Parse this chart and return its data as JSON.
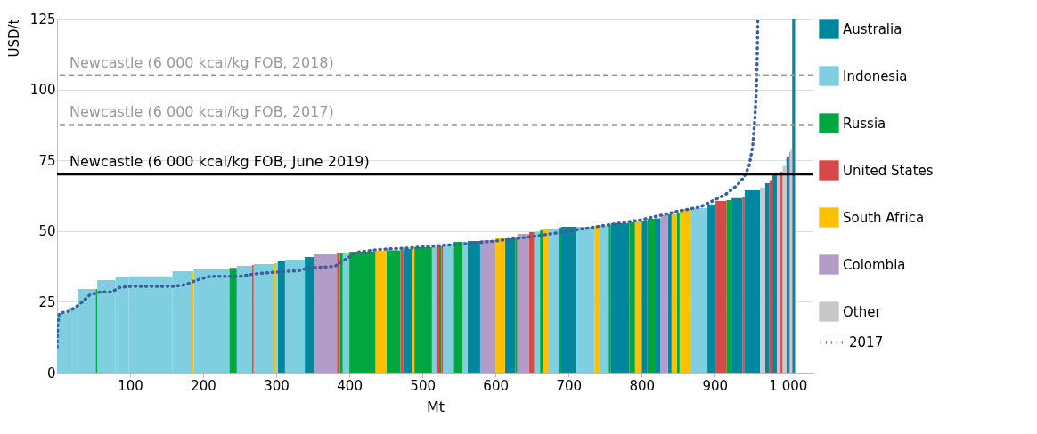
{
  "chart_data": {
    "type": "histogram",
    "xlabel": "Mt",
    "ylabel": "USD/t",
    "bins": [
      0,
      16,
      28,
      53,
      55,
      80,
      98,
      158,
      185,
      187,
      236,
      246,
      267,
      269,
      297,
      300,
      302,
      312,
      339,
      352,
      383,
      387,
      391,
      400,
      436,
      451,
      470,
      474,
      486,
      489,
      513,
      519,
      523,
      526,
      528,
      543,
      555,
      562,
      579,
      600,
      613,
      627,
      630,
      646,
      653,
      661,
      665,
      673,
      687,
      690,
      711,
      736,
      743,
      755,
      758,
      783,
      791,
      800,
      808,
      818,
      826,
      836,
      841,
      848,
      852,
      867,
      890,
      901,
      916,
      923,
      938,
      941,
      962,
      969,
      975,
      979,
      985,
      990,
      993,
      998,
      1002,
      1004,
      1006,
      1010
    ],
    "series": [
      {
        "name": "Australia",
        "color": "#00879e",
        "values": [
          null,
          null,
          null,
          null,
          null,
          null,
          null,
          null,
          null,
          null,
          null,
          null,
          null,
          null,
          null,
          null,
          39.6,
          null,
          40.8,
          null,
          null,
          null,
          null,
          null,
          null,
          null,
          null,
          43.7,
          null,
          null,
          null,
          null,
          null,
          null,
          null,
          null,
          null,
          46.5,
          null,
          null,
          47.4,
          null,
          null,
          null,
          null,
          null,
          null,
          null,
          null,
          51.5,
          null,
          null,
          null,
          null,
          52.8,
          null,
          null,
          53.7,
          null,
          54.5,
          null,
          55.9,
          null,
          null,
          null,
          null,
          59.4,
          null,
          null,
          61.6,
          null,
          64.4,
          null,
          66.9,
          null,
          70,
          null,
          null,
          null,
          76,
          null,
          null,
          125
        ]
      },
      {
        "name": "Indonesia",
        "color": "#7fcfe0",
        "values": [
          21,
          23,
          29.5,
          null,
          32.7,
          33.6,
          34,
          35.8,
          null,
          36.4,
          null,
          37.7,
          null,
          38.3,
          null,
          38.6,
          null,
          39.9,
          null,
          null,
          null,
          null,
          42.5,
          null,
          null,
          null,
          null,
          null,
          null,
          null,
          44.3,
          null,
          null,
          null,
          45.5,
          null,
          46.2,
          null,
          null,
          null,
          null,
          null,
          null,
          null,
          49.8,
          null,
          null,
          50.9,
          null,
          null,
          51.5,
          null,
          51.9,
          null,
          null,
          null,
          null,
          null,
          null,
          null,
          null,
          null,
          null,
          null,
          null,
          58.1,
          null,
          null,
          null,
          null,
          null,
          null,
          null,
          null,
          null,
          null,
          null,
          null,
          null,
          null,
          null,
          null,
          null
        ]
      },
      {
        "name": "Russia",
        "color": "#00a640",
        "values": [
          null,
          null,
          null,
          29.5,
          null,
          null,
          null,
          null,
          null,
          null,
          37,
          null,
          null,
          null,
          null,
          null,
          null,
          null,
          null,
          null,
          null,
          42.3,
          null,
          42.7,
          null,
          43.2,
          null,
          null,
          null,
          44.3,
          null,
          null,
          44.6,
          null,
          null,
          46.2,
          null,
          null,
          null,
          null,
          null,
          47.6,
          null,
          null,
          null,
          50.3,
          null,
          null,
          51.2,
          null,
          null,
          null,
          null,
          52.2,
          null,
          53.1,
          null,
          null,
          54.3,
          null,
          null,
          null,
          null,
          56.5,
          null,
          null,
          null,
          null,
          60.9,
          null,
          null,
          null,
          null,
          null,
          null,
          null,
          null,
          null,
          null,
          null,
          null,
          null,
          null
        ]
      },
      {
        "name": "United States",
        "color": "#d94848",
        "values": [
          null,
          null,
          null,
          null,
          null,
          null,
          null,
          null,
          null,
          null,
          null,
          null,
          38,
          null,
          null,
          null,
          null,
          null,
          null,
          null,
          42.3,
          null,
          null,
          null,
          null,
          null,
          43.4,
          null,
          null,
          null,
          null,
          44.5,
          null,
          44.8,
          null,
          null,
          null,
          null,
          null,
          null,
          null,
          null,
          null,
          49.6,
          null,
          null,
          null,
          null,
          null,
          null,
          null,
          null,
          null,
          null,
          null,
          null,
          null,
          null,
          null,
          null,
          null,
          null,
          null,
          null,
          null,
          null,
          null,
          60.6,
          null,
          null,
          62,
          null,
          null,
          null,
          68,
          null,
          null,
          71,
          null,
          null,
          null,
          null,
          null
        ]
      },
      {
        "name": "South Africa",
        "color": "#ffc000",
        "values": [
          null,
          null,
          null,
          null,
          null,
          null,
          null,
          null,
          35.8,
          null,
          null,
          null,
          null,
          null,
          38.6,
          null,
          null,
          null,
          null,
          null,
          null,
          null,
          null,
          null,
          43,
          null,
          null,
          null,
          43.8,
          null,
          null,
          null,
          null,
          null,
          null,
          null,
          null,
          null,
          null,
          47.4,
          null,
          null,
          null,
          null,
          null,
          null,
          50.9,
          null,
          null,
          null,
          null,
          51.8,
          null,
          null,
          null,
          null,
          53.4,
          null,
          null,
          null,
          null,
          null,
          56,
          null,
          57.8,
          null,
          null,
          null,
          null,
          null,
          null,
          null,
          null,
          null,
          null,
          null,
          null,
          null,
          null,
          null,
          null,
          null,
          null
        ]
      },
      {
        "name": "Colombia",
        "color": "#b39cc8",
        "values": [
          null,
          null,
          null,
          null,
          null,
          null,
          null,
          null,
          null,
          null,
          null,
          null,
          null,
          null,
          null,
          null,
          null,
          null,
          null,
          41.8,
          null,
          null,
          null,
          null,
          null,
          null,
          null,
          null,
          null,
          null,
          null,
          null,
          null,
          null,
          null,
          null,
          null,
          null,
          46.8,
          null,
          null,
          null,
          49,
          null,
          null,
          null,
          null,
          null,
          null,
          null,
          null,
          null,
          null,
          null,
          null,
          null,
          null,
          null,
          null,
          null,
          55.6,
          null,
          null,
          null,
          null,
          null,
          null,
          null,
          null,
          null,
          null,
          null,
          null,
          null,
          null,
          null,
          null,
          null,
          null,
          null,
          78,
          null,
          null
        ]
      },
      {
        "name": "Other",
        "color": "#c8c8c8",
        "values": [
          null,
          null,
          null,
          null,
          null,
          null,
          null,
          null,
          null,
          null,
          null,
          null,
          null,
          null,
          null,
          null,
          null,
          null,
          null,
          null,
          null,
          null,
          null,
          null,
          null,
          null,
          null,
          null,
          null,
          null,
          null,
          null,
          null,
          null,
          null,
          null,
          null,
          null,
          null,
          null,
          null,
          null,
          null,
          null,
          null,
          null,
          null,
          null,
          null,
          null,
          null,
          null,
          null,
          null,
          null,
          null,
          null,
          null,
          null,
          null,
          null,
          null,
          null,
          null,
          null,
          null,
          null,
          null,
          null,
          null,
          null,
          null,
          65.3,
          null,
          null,
          null,
          70.5,
          null,
          73,
          null,
          null,
          79,
          null
        ]
      },
      {
        "name": "2017",
        "type": "line",
        "color": "#3b5f9c",
        "line_style": "dotted",
        "x": [
          0,
          1,
          3,
          15,
          25,
          35,
          45,
          60,
          75,
          85,
          100,
          160,
          175,
          185,
          195,
          210,
          250,
          275,
          300,
          330,
          345,
          380,
          395,
          410,
          440,
          480,
          530,
          560,
          600,
          650,
          700,
          750,
          800,
          850,
          880,
          900,
          915,
          930,
          940,
          947,
          952,
          955,
          957,
          958,
          959
        ],
        "values": [
          9,
          17,
          21,
          21.5,
          23,
          25,
          27.5,
          28.5,
          28.5,
          30,
          30.5,
          30.5,
          31,
          32,
          33,
          34,
          34,
          35,
          35.5,
          36,
          37,
          37.5,
          40,
          42.5,
          43.5,
          44,
          45,
          45.5,
          46.5,
          48,
          50,
          52,
          54,
          57,
          58.5,
          61,
          63,
          66,
          69,
          73,
          80,
          90,
          100,
          110,
          125
        ]
      }
    ],
    "ref_lines": [
      {
        "axis": "y",
        "value": 105,
        "label": "Newcastle (6 000 kcal/kg FOB, 2018)",
        "color": "#999999",
        "line_style": "dashed"
      },
      {
        "axis": "y",
        "value": 87.5,
        "label": "Newcastle (6 000 kcal/kg FOB, 2017)",
        "color": "#999999",
        "line_style": "dashed"
      },
      {
        "axis": "y",
        "value": 70,
        "label": "Newcastle (6 000 kcal/kg FOB, June 2019)",
        "color": "#000000",
        "line_style": "solid"
      }
    ],
    "xlim": [
      0,
      1035
    ],
    "xticks": [
      100,
      200,
      300,
      400,
      500,
      600,
      700,
      800,
      900,
      {
        "value": 1000,
        "label": "1 000"
      }
    ],
    "ylim": [
      0,
      125
    ],
    "yticks": [
      0,
      25,
      50,
      75,
      100,
      125
    ],
    "grid": "y",
    "legend": "right"
  }
}
